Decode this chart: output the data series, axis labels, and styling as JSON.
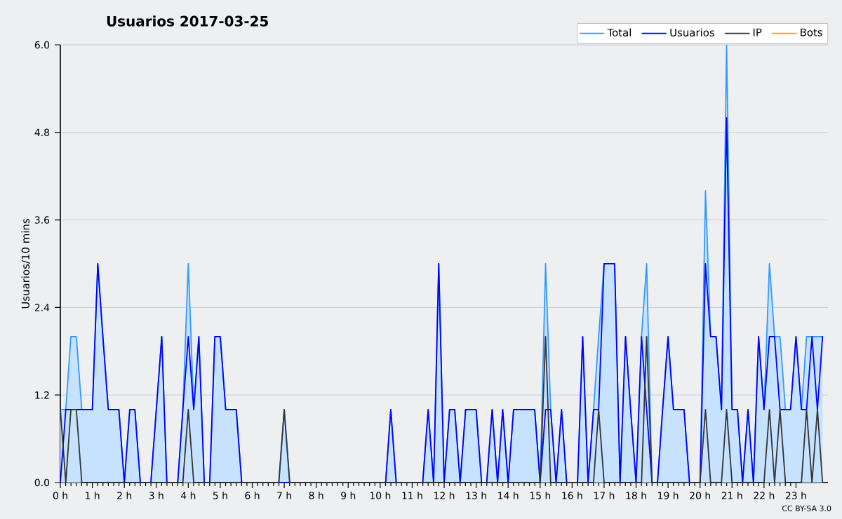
{
  "chart_data": {
    "type": "line",
    "title": "Usuarios  2017-03-25",
    "ylabel": "Usuarios/10 mins",
    "annotations": [
      "CC BY-SA 3.0"
    ],
    "x": [
      0,
      0.17,
      0.33,
      0.5,
      0.67,
      0.83,
      1,
      1.17,
      1.33,
      1.5,
      1.67,
      1.83,
      2,
      2.17,
      2.33,
      2.5,
      2.67,
      2.83,
      3,
      3.17,
      3.33,
      3.5,
      3.67,
      3.83,
      4,
      4.17,
      4.33,
      4.5,
      4.67,
      4.83,
      5,
      5.17,
      5.33,
      5.5,
      5.67,
      5.83,
      6,
      6.17,
      6.33,
      6.5,
      6.67,
      6.83,
      7,
      7.17,
      7.33,
      7.5,
      7.67,
      7.83,
      8,
      8.17,
      8.33,
      8.5,
      8.67,
      8.83,
      9,
      9.17,
      9.33,
      9.5,
      9.67,
      9.83,
      10,
      10.17,
      10.33,
      10.5,
      10.67,
      10.83,
      11,
      11.17,
      11.33,
      11.5,
      11.67,
      11.83,
      12,
      12.17,
      12.33,
      12.5,
      12.67,
      12.83,
      13,
      13.17,
      13.33,
      13.5,
      13.67,
      13.83,
      14,
      14.17,
      14.33,
      14.5,
      14.67,
      14.83,
      15,
      15.17,
      15.33,
      15.5,
      15.67,
      15.83,
      16,
      16.17,
      16.33,
      16.5,
      16.67,
      16.83,
      17,
      17.17,
      17.33,
      17.5,
      17.67,
      17.83,
      18,
      18.17,
      18.33,
      18.5,
      18.67,
      18.83,
      19,
      19.17,
      19.33,
      19.5,
      19.67,
      19.83,
      20,
      20.17,
      20.33,
      20.5,
      20.67,
      20.83,
      21,
      21.17,
      21.33,
      21.5,
      21.67,
      21.83,
      22,
      22.17,
      22.33,
      22.5,
      22.67,
      22.83,
      23,
      23.17,
      23.33,
      23.5,
      23.67,
      23.83
    ],
    "series": [
      {
        "name": "Total",
        "type": "area",
        "color": "#3399ff",
        "values": [
          1,
          1,
          2,
          2,
          1,
          1,
          1,
          3,
          2,
          1,
          1,
          1,
          0,
          1,
          1,
          0,
          0,
          0,
          1,
          2,
          0,
          0,
          0,
          1,
          3,
          1,
          2,
          0,
          0,
          2,
          2,
          1,
          1,
          1,
          0,
          0,
          0,
          0,
          0,
          0,
          0,
          0,
          1,
          0,
          0,
          0,
          0,
          0,
          0,
          0,
          0,
          0,
          0,
          0,
          0,
          0,
          0,
          0,
          0,
          0,
          0,
          0,
          1,
          0,
          0,
          0,
          0,
          0,
          0,
          1,
          0,
          3,
          0,
          1,
          1,
          0,
          1,
          1,
          1,
          0,
          0,
          1,
          0,
          1,
          0,
          1,
          1,
          1,
          1,
          1,
          0,
          3,
          1,
          0,
          1,
          0,
          0,
          0,
          2,
          0,
          1,
          2,
          3,
          3,
          3,
          0,
          2,
          1,
          0,
          2,
          3,
          0,
          0,
          1,
          2,
          1,
          1,
          1,
          0,
          0,
          0,
          4,
          2,
          2,
          1,
          6,
          1,
          1,
          0,
          1,
          0,
          2,
          1,
          3,
          2,
          2,
          1,
          1,
          2,
          1,
          2,
          2,
          2,
          2
        ]
      },
      {
        "name": "Usuarios",
        "color": "#0000ff",
        "values": [
          0,
          1,
          1,
          1,
          1,
          1,
          1,
          3,
          2,
          1,
          1,
          1,
          0,
          1,
          1,
          0,
          0,
          0,
          1,
          2,
          0,
          0,
          0,
          1,
          2,
          1,
          2,
          0,
          0,
          2,
          2,
          1,
          1,
          1,
          0,
          0,
          0,
          0,
          0,
          0,
          0,
          0,
          null,
          0,
          0,
          0,
          0,
          0,
          0,
          0,
          0,
          0,
          0,
          0,
          0,
          0,
          0,
          0,
          0,
          0,
          0,
          0,
          1,
          0,
          0,
          0,
          0,
          0,
          0,
          1,
          0,
          3,
          0,
          1,
          1,
          0,
          1,
          1,
          1,
          0,
          0,
          1,
          0,
          1,
          0,
          1,
          1,
          1,
          1,
          1,
          0,
          1,
          1,
          0,
          1,
          0,
          0,
          0,
          2,
          0,
          1,
          1,
          3,
          3,
          3,
          0,
          2,
          1,
          0,
          2,
          1,
          0,
          0,
          1,
          2,
          1,
          1,
          1,
          0,
          0,
          0,
          3,
          2,
          2,
          1,
          5,
          1,
          1,
          0,
          1,
          0,
          2,
          1,
          2,
          2,
          1,
          1,
          1,
          2,
          1,
          1,
          2,
          1,
          2
        ]
      },
      {
        "name": "IP",
        "color": "#333333",
        "values": [
          1,
          0,
          1,
          1,
          0,
          0,
          0,
          0,
          0,
          0,
          0,
          0,
          0,
          0,
          0,
          0,
          0,
          0,
          0,
          0,
          0,
          0,
          0,
          0,
          1,
          0,
          0,
          0,
          0,
          0,
          0,
          0,
          0,
          0,
          0,
          0,
          0,
          0,
          0,
          0,
          0,
          0,
          1,
          0,
          0,
          0,
          0,
          0,
          0,
          0,
          0,
          0,
          0,
          0,
          0,
          0,
          0,
          0,
          0,
          0,
          0,
          0,
          0,
          0,
          0,
          0,
          0,
          0,
          0,
          0,
          0,
          0,
          0,
          0,
          0,
          0,
          0,
          0,
          0,
          0,
          0,
          0,
          0,
          0,
          0,
          0,
          0,
          0,
          0,
          0,
          0,
          2,
          0,
          0,
          0,
          0,
          0,
          0,
          0,
          0,
          0,
          1,
          0,
          0,
          0,
          0,
          0,
          0,
          0,
          0,
          2,
          0,
          0,
          0,
          0,
          0,
          0,
          0,
          0,
          0,
          0,
          1,
          0,
          0,
          0,
          1,
          0,
          0,
          0,
          0,
          0,
          0,
          0,
          1,
          0,
          1,
          0,
          0,
          0,
          0,
          1,
          0,
          1,
          0
        ]
      },
      {
        "name": "Bots",
        "color": "#ff9900",
        "values": [
          null,
          null,
          null,
          null,
          null,
          null,
          null,
          null,
          null,
          null,
          null,
          null,
          null,
          null,
          null,
          null,
          null,
          null,
          null,
          null,
          null,
          null,
          null,
          null,
          null,
          null,
          null,
          null,
          null,
          null,
          null,
          null,
          null,
          null,
          null,
          null,
          null,
          null,
          null,
          null,
          null,
          null,
          null,
          null,
          null,
          null,
          null,
          null,
          null,
          null,
          null,
          null,
          null,
          null,
          null,
          null,
          null,
          null,
          null,
          null,
          null,
          null,
          null,
          null,
          null,
          null,
          null,
          null,
          null,
          null,
          null,
          null,
          null,
          null,
          null,
          null,
          null,
          null,
          null,
          null,
          null,
          null,
          null,
          null,
          null,
          null,
          null,
          null,
          null,
          null,
          null,
          null,
          null,
          null,
          null,
          null,
          null,
          null,
          null,
          null,
          null,
          null,
          null,
          null,
          null,
          null,
          null,
          null,
          null,
          null,
          null,
          null,
          null,
          null,
          null,
          null,
          null,
          null,
          null,
          null,
          null,
          null,
          null,
          null,
          null,
          null,
          null,
          null,
          null,
          null,
          null,
          null,
          null,
          null,
          null,
          null,
          null,
          null,
          null,
          null,
          null,
          null,
          null,
          null
        ]
      }
    ],
    "xlim": [
      0,
      24
    ],
    "xticks": [
      {
        "value": 0,
        "label": "0 h"
      },
      {
        "value": 1,
        "label": "1 h"
      },
      {
        "value": 2,
        "label": "2 h"
      },
      {
        "value": 3,
        "label": "3 h"
      },
      {
        "value": 4,
        "label": "4 h"
      },
      {
        "value": 5,
        "label": "5 h"
      },
      {
        "value": 6,
        "label": "6 h"
      },
      {
        "value": 7,
        "label": "7 h"
      },
      {
        "value": 8,
        "label": "8 h"
      },
      {
        "value": 9,
        "label": "9 h"
      },
      {
        "value": 10,
        "label": "10 h"
      },
      {
        "value": 11,
        "label": "11 h"
      },
      {
        "value": 12,
        "label": "12 h"
      },
      {
        "value": 13,
        "label": "13 h"
      },
      {
        "value": 14,
        "label": "14 h"
      },
      {
        "value": 15,
        "label": "15 h"
      },
      {
        "value": 16,
        "label": "16 h"
      },
      {
        "value": 17,
        "label": "17 h"
      },
      {
        "value": 18,
        "label": "18 h"
      },
      {
        "value": 19,
        "label": "19 h"
      },
      {
        "value": 20,
        "label": "20 h"
      },
      {
        "value": 21,
        "label": "21 h"
      },
      {
        "value": 22,
        "label": "22 h"
      },
      {
        "value": 23,
        "label": "23 h"
      }
    ],
    "ylim": [
      0,
      6
    ],
    "yticks": [
      {
        "value": 0,
        "label": "0.0"
      },
      {
        "value": 1.2,
        "label": "1.2"
      },
      {
        "value": 2.4,
        "label": "2.4"
      },
      {
        "value": 3.6,
        "label": "3.6"
      },
      {
        "value": 4.8,
        "label": "4.8"
      },
      {
        "value": 6,
        "label": "6.0"
      }
    ],
    "grid": "y",
    "legend": "top right",
    "marker": "none",
    "line_style": "solid"
  }
}
